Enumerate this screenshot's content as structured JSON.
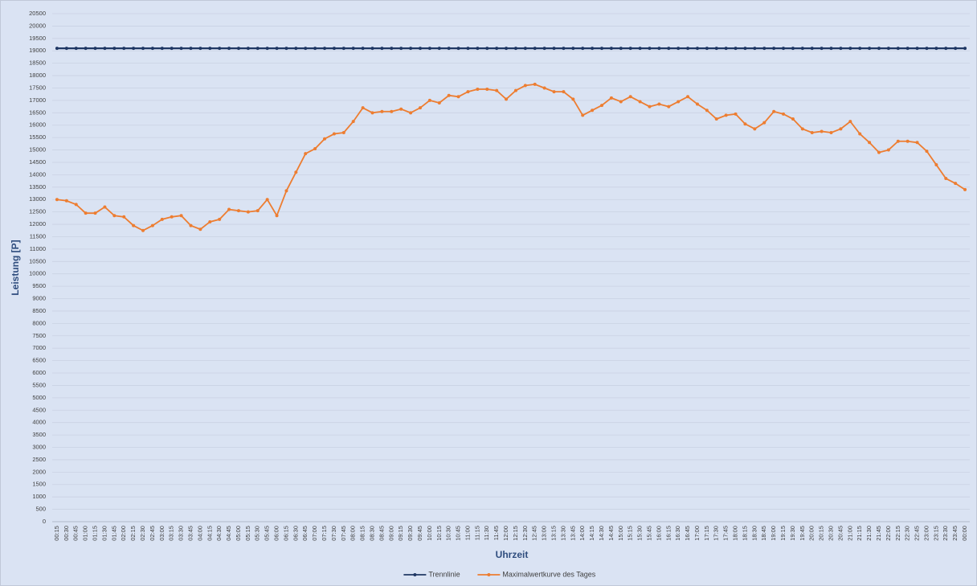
{
  "chart_data": {
    "type": "line",
    "x_label": "Uhrzeit",
    "y_label": "Leistung [P]",
    "categories": [
      "00:15",
      "00:30",
      "00:45",
      "01:00",
      "01:15",
      "01:30",
      "01:45",
      "02:00",
      "02:15",
      "02:30",
      "02:45",
      "03:00",
      "03:15",
      "03:30",
      "03:45",
      "04:00",
      "04:15",
      "04:30",
      "04:45",
      "05:00",
      "05:15",
      "05:30",
      "05:45",
      "06:00",
      "06:15",
      "06:30",
      "06:45",
      "07:00",
      "07:15",
      "07:30",
      "07:45",
      "08:00",
      "08:15",
      "08:30",
      "08:45",
      "09:00",
      "09:15",
      "09:30",
      "09:45",
      "10:00",
      "10:15",
      "10:30",
      "10:45",
      "11:00",
      "11:15",
      "11:30",
      "11:45",
      "12:00",
      "12:15",
      "12:30",
      "12:45",
      "13:00",
      "13:15",
      "13:30",
      "13:45",
      "14:00",
      "14:15",
      "14:30",
      "14:45",
      "15:00",
      "15:15",
      "15:30",
      "15:45",
      "16:00",
      "16:15",
      "16:30",
      "16:45",
      "17:00",
      "17:15",
      "17:30",
      "17:45",
      "18:00",
      "18:15",
      "18:30",
      "18:45",
      "19:00",
      "19:15",
      "19:30",
      "19:45",
      "20:00",
      "20:15",
      "20:30",
      "20:45",
      "21:00",
      "21:15",
      "21:30",
      "21:45",
      "22:00",
      "22:15",
      "22:30",
      "22:45",
      "23:00",
      "23:15",
      "23:30",
      "23:45",
      "00:00"
    ],
    "series": [
      {
        "name": "Trennlinie",
        "color": "#203864",
        "values": [
          19100,
          19100,
          19100,
          19100,
          19100,
          19100,
          19100,
          19100,
          19100,
          19100,
          19100,
          19100,
          19100,
          19100,
          19100,
          19100,
          19100,
          19100,
          19100,
          19100,
          19100,
          19100,
          19100,
          19100,
          19100,
          19100,
          19100,
          19100,
          19100,
          19100,
          19100,
          19100,
          19100,
          19100,
          19100,
          19100,
          19100,
          19100,
          19100,
          19100,
          19100,
          19100,
          19100,
          19100,
          19100,
          19100,
          19100,
          19100,
          19100,
          19100,
          19100,
          19100,
          19100,
          19100,
          19100,
          19100,
          19100,
          19100,
          19100,
          19100,
          19100,
          19100,
          19100,
          19100,
          19100,
          19100,
          19100,
          19100,
          19100,
          19100,
          19100,
          19100,
          19100,
          19100,
          19100,
          19100,
          19100,
          19100,
          19100,
          19100,
          19100,
          19100,
          19100,
          19100,
          19100,
          19100,
          19100,
          19100,
          19100,
          19100,
          19100,
          19100,
          19100,
          19100,
          19100,
          19100
        ]
      },
      {
        "name": "Maximalwertkurve des Tages",
        "color": "#ed7d31",
        "values": [
          13000,
          12950,
          12800,
          12450,
          12450,
          12700,
          12350,
          12300,
          11950,
          11750,
          11950,
          12200,
          12300,
          12350,
          11950,
          11800,
          12100,
          12200,
          12600,
          12550,
          12500,
          12550,
          13000,
          12350,
          13350,
          14100,
          14850,
          15050,
          15450,
          15650,
          15700,
          16150,
          16700,
          16500,
          16550,
          16550,
          16650,
          16500,
          16700,
          17000,
          16900,
          17200,
          17150,
          17350,
          17450,
          17450,
          17400,
          17050,
          17400,
          17600,
          17650,
          17500,
          17350,
          17350,
          17050,
          16400,
          16600,
          16800,
          17100,
          16950,
          17150,
          16950,
          16750,
          16850,
          16750,
          16950,
          17150,
          16850,
          16600,
          16250,
          16400,
          16450,
          16050,
          15850,
          16100,
          16550,
          16450,
          16250,
          15850,
          15700,
          15750,
          15700,
          15850,
          16150,
          15650,
          15300,
          14900,
          15000,
          15350,
          15350,
          15300,
          14950,
          14400,
          13850,
          13650,
          13400
        ]
      }
    ],
    "ylim": [
      0,
      20500
    ],
    "yticks": [
      0,
      500,
      1000,
      1500,
      2000,
      2500,
      3000,
      3500,
      4000,
      4500,
      5000,
      5500,
      6000,
      6500,
      7000,
      7500,
      8000,
      8500,
      9000,
      9500,
      10000,
      10500,
      11000,
      11500,
      12000,
      12500,
      13000,
      13500,
      14000,
      14500,
      15000,
      15500,
      16000,
      16500,
      17000,
      17500,
      18000,
      18500,
      19000,
      19500,
      20000,
      20500
    ],
    "grid": true,
    "legend": "bottom"
  }
}
